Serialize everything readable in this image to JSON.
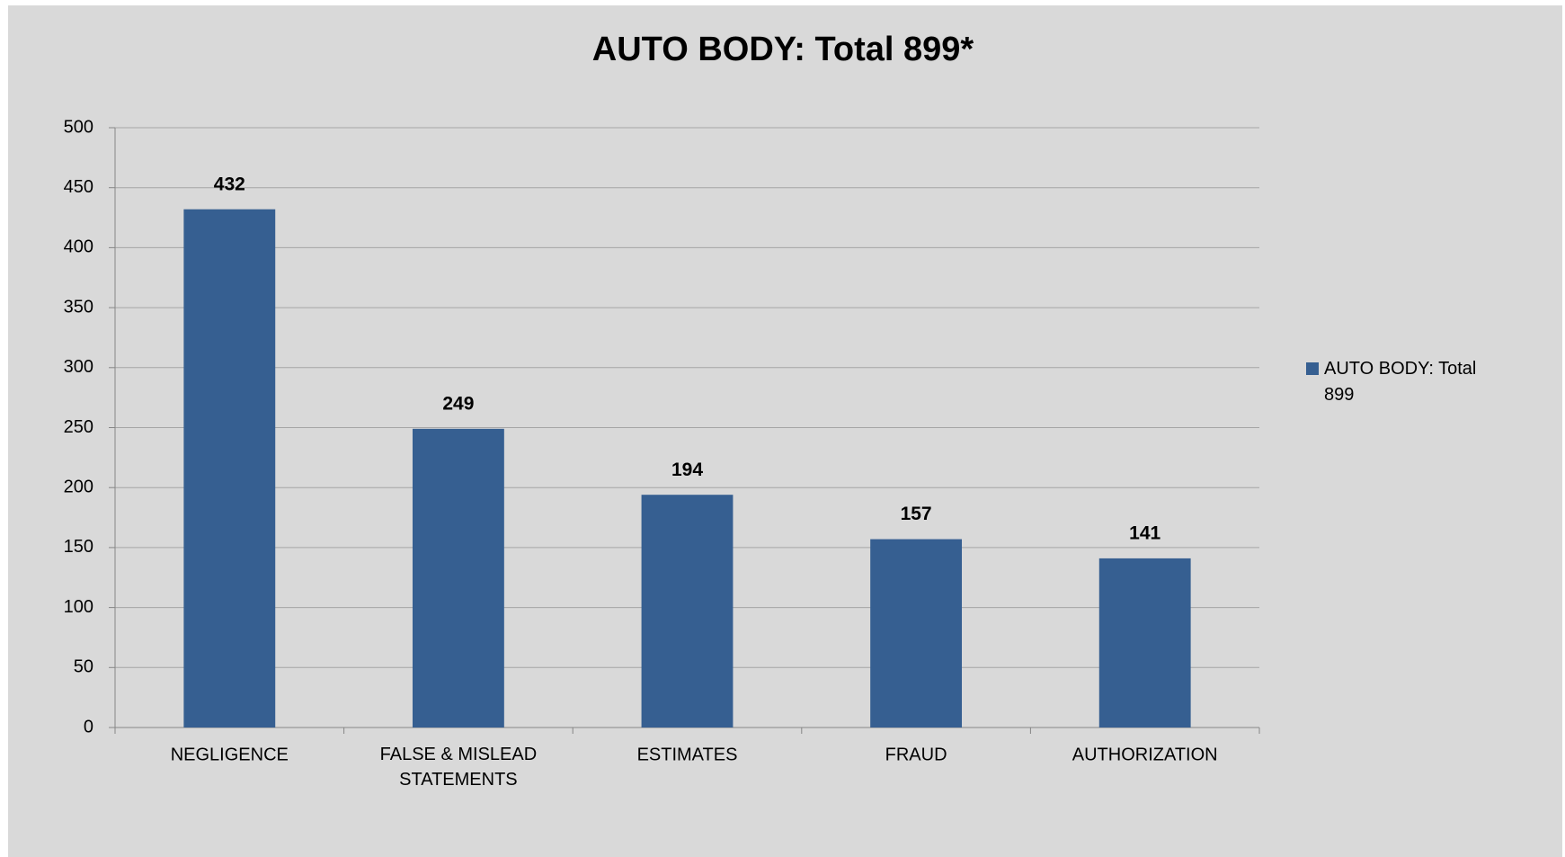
{
  "chart_data": {
    "type": "bar",
    "title": "AUTO BODY: Total 899*",
    "categories": [
      "NEGLIGENCE",
      "FALSE & MISLEAD STATEMENTS",
      "ESTIMATES",
      "FRAUD",
      "AUTHORIZATION"
    ],
    "series": [
      {
        "name": "AUTO BODY: Total 899",
        "color": "#365f91",
        "values": [
          432,
          249,
          194,
          157,
          141
        ]
      }
    ],
    "ylim": [
      0,
      500
    ],
    "yticks": [
      0,
      50,
      100,
      150,
      200,
      250,
      300,
      350,
      400,
      450,
      500
    ],
    "grid": true,
    "legend": "right",
    "data_labels": true
  }
}
